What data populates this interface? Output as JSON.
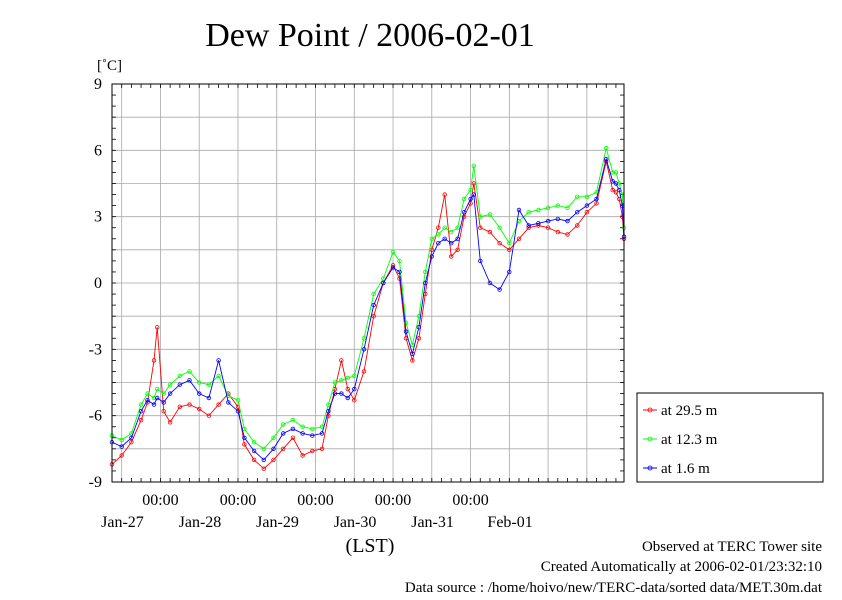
{
  "chart_data": {
    "type": "line",
    "title": "Dew Point / 2006-02-01",
    "ylabel": "[˚C]",
    "xlabel": "(LST)",
    "ylim": [
      -9,
      9
    ],
    "yticks": [
      9,
      6,
      3,
      0,
      -3,
      -6,
      -9
    ],
    "xlim": [
      "2006-01-26 09:00",
      "2006-02-01 23:30"
    ],
    "xticks_time": [
      {
        "x": "2006-01-27 00:00",
        "label": "00:00"
      },
      {
        "x": "2006-01-28 00:00",
        "label": "00:00"
      },
      {
        "x": "2006-01-29 00:00",
        "label": "00:00"
      },
      {
        "x": "2006-01-30 00:00",
        "label": "00:00"
      },
      {
        "x": "2006-01-31 00:00",
        "label": "00:00"
      }
    ],
    "xticks_date": [
      {
        "x": "2006-01-27 00:00",
        "label": "Jan-27"
      },
      {
        "x": "2006-01-28 00:00",
        "label": "Jan-28"
      },
      {
        "x": "2006-01-29 00:00",
        "label": "Jan-29"
      },
      {
        "x": "2006-01-30 00:00",
        "label": "Jan-30"
      },
      {
        "x": "2006-01-31 00:00",
        "label": "Jan-31"
      },
      {
        "x": "2006-02-01 00:00",
        "label": "Feb-01"
      }
    ],
    "grid": true,
    "legend_position": "right, outside plot",
    "series": [
      {
        "name": "at 29.5 m",
        "color": "#ff0000",
        "values": [
          [
            "2006-01-26 09:00",
            -8.2
          ],
          [
            "2006-01-26 12:00",
            -7.8
          ],
          [
            "2006-01-26 15:00",
            -7.2
          ],
          [
            "2006-01-26 18:00",
            -6.2
          ],
          [
            "2006-01-26 20:00",
            -5.4
          ],
          [
            "2006-01-26 22:00",
            -3.5
          ],
          [
            "2006-01-26 23:00",
            -2.0
          ],
          [
            "2006-01-27 01:00",
            -5.8
          ],
          [
            "2006-01-27 03:00",
            -6.3
          ],
          [
            "2006-01-27 06:00",
            -5.6
          ],
          [
            "2006-01-27 09:00",
            -5.5
          ],
          [
            "2006-01-27 12:00",
            -5.7
          ],
          [
            "2006-01-27 15:00",
            -6.0
          ],
          [
            "2006-01-27 18:00",
            -5.5
          ],
          [
            "2006-01-27 21:00",
            -5.0
          ],
          [
            "2006-01-28 00:00",
            -5.6
          ],
          [
            "2006-01-28 02:00",
            -7.3
          ],
          [
            "2006-01-28 05:00",
            -8.0
          ],
          [
            "2006-01-28 08:00",
            -8.4
          ],
          [
            "2006-01-28 11:00",
            -8.0
          ],
          [
            "2006-01-28 14:00",
            -7.5
          ],
          [
            "2006-01-28 17:00",
            -7.0
          ],
          [
            "2006-01-28 20:00",
            -7.8
          ],
          [
            "2006-01-28 23:00",
            -7.6
          ],
          [
            "2006-01-29 02:00",
            -7.5
          ],
          [
            "2006-01-29 04:00",
            -6.0
          ],
          [
            "2006-01-29 06:00",
            -4.8
          ],
          [
            "2006-01-29 08:00",
            -3.5
          ],
          [
            "2006-01-29 10:00",
            -4.8
          ],
          [
            "2006-01-29 12:00",
            -5.3
          ],
          [
            "2006-01-29 15:00",
            -4.0
          ],
          [
            "2006-01-29 18:00",
            -1.5
          ],
          [
            "2006-01-29 21:00",
            0.0
          ],
          [
            "2006-01-30 00:00",
            0.8
          ],
          [
            "2006-01-30 02:00",
            0.2
          ],
          [
            "2006-01-30 04:00",
            -2.5
          ],
          [
            "2006-01-30 06:00",
            -3.5
          ],
          [
            "2006-01-30 08:00",
            -2.5
          ],
          [
            "2006-01-30 10:00",
            -0.5
          ],
          [
            "2006-01-30 12:00",
            1.5
          ],
          [
            "2006-01-30 14:00",
            2.5
          ],
          [
            "2006-01-30 16:00",
            4.0
          ],
          [
            "2006-01-30 18:00",
            1.2
          ],
          [
            "2006-01-30 20:00",
            1.5
          ],
          [
            "2006-01-30 22:00",
            3.0
          ],
          [
            "2006-01-31 00:00",
            3.6
          ],
          [
            "2006-01-31 01:00",
            4.5
          ],
          [
            "2006-01-31 03:00",
            2.5
          ],
          [
            "2006-01-31 06:00",
            2.3
          ],
          [
            "2006-01-31 09:00",
            1.8
          ],
          [
            "2006-01-31 12:00",
            1.5
          ],
          [
            "2006-01-31 15:00",
            2.0
          ],
          [
            "2006-01-31 18:00",
            2.5
          ],
          [
            "2006-01-31 21:00",
            2.6
          ],
          [
            "2006-02-01 00:00",
            2.5
          ],
          [
            "2006-02-01 03:00",
            2.3
          ],
          [
            "2006-02-01 06:00",
            2.2
          ],
          [
            "2006-02-01 09:00",
            2.6
          ],
          [
            "2006-02-01 12:00",
            3.2
          ],
          [
            "2006-02-01 15:00",
            3.6
          ],
          [
            "2006-02-01 18:00",
            5.5
          ],
          [
            "2006-02-01 20:00",
            4.2
          ],
          [
            "2006-02-01 21:00",
            4.1
          ],
          [
            "2006-02-01 22:00",
            3.8
          ],
          [
            "2006-02-01 23:00",
            3.0
          ],
          [
            "2006-02-01 23:30",
            2.0
          ]
        ]
      },
      {
        "name": "at 12.3 m",
        "color": "#00ff00",
        "values": [
          [
            "2006-01-26 09:00",
            -6.9
          ],
          [
            "2006-01-26 12:00",
            -7.1
          ],
          [
            "2006-01-26 15:00",
            -6.8
          ],
          [
            "2006-01-26 18:00",
            -5.5
          ],
          [
            "2006-01-26 20:00",
            -5.0
          ],
          [
            "2006-01-26 22:00",
            -5.2
          ],
          [
            "2006-01-26 23:00",
            -4.8
          ],
          [
            "2006-01-27 01:00",
            -5.0
          ],
          [
            "2006-01-27 03:00",
            -4.6
          ],
          [
            "2006-01-27 06:00",
            -4.2
          ],
          [
            "2006-01-27 09:00",
            -4.0
          ],
          [
            "2006-01-27 12:00",
            -4.5
          ],
          [
            "2006-01-27 15:00",
            -4.6
          ],
          [
            "2006-01-27 18:00",
            -4.2
          ],
          [
            "2006-01-27 21:00",
            -5.1
          ],
          [
            "2006-01-28 00:00",
            -5.3
          ],
          [
            "2006-01-28 02:00",
            -6.6
          ],
          [
            "2006-01-28 05:00",
            -7.2
          ],
          [
            "2006-01-28 08:00",
            -7.5
          ],
          [
            "2006-01-28 11:00",
            -7.0
          ],
          [
            "2006-01-28 14:00",
            -6.4
          ],
          [
            "2006-01-28 17:00",
            -6.2
          ],
          [
            "2006-01-28 20:00",
            -6.5
          ],
          [
            "2006-01-28 23:00",
            -6.6
          ],
          [
            "2006-01-29 02:00",
            -6.5
          ],
          [
            "2006-01-29 04:00",
            -5.5
          ],
          [
            "2006-01-29 06:00",
            -4.5
          ],
          [
            "2006-01-29 08:00",
            -4.4
          ],
          [
            "2006-01-29 10:00",
            -4.3
          ],
          [
            "2006-01-29 12:00",
            -4.2
          ],
          [
            "2006-01-29 15:00",
            -2.5
          ],
          [
            "2006-01-29 18:00",
            -0.5
          ],
          [
            "2006-01-29 21:00",
            0.2
          ],
          [
            "2006-01-30 00:00",
            1.4
          ],
          [
            "2006-01-30 02:00",
            1.0
          ],
          [
            "2006-01-30 04:00",
            -1.8
          ],
          [
            "2006-01-30 06:00",
            -2.8
          ],
          [
            "2006-01-30 08:00",
            -1.5
          ],
          [
            "2006-01-30 10:00",
            0.5
          ],
          [
            "2006-01-30 12:00",
            2.0
          ],
          [
            "2006-01-30 14:00",
            2.2
          ],
          [
            "2006-01-30 16:00",
            2.5
          ],
          [
            "2006-01-30 18:00",
            2.3
          ],
          [
            "2006-01-30 20:00",
            2.5
          ],
          [
            "2006-01-30 22:00",
            3.8
          ],
          [
            "2006-01-31 00:00",
            4.2
          ],
          [
            "2006-01-31 01:00",
            5.3
          ],
          [
            "2006-01-31 03:00",
            3.0
          ],
          [
            "2006-01-31 06:00",
            3.1
          ],
          [
            "2006-01-31 09:00",
            2.5
          ],
          [
            "2006-01-31 12:00",
            1.8
          ],
          [
            "2006-01-31 15:00",
            2.8
          ],
          [
            "2006-01-31 18:00",
            3.2
          ],
          [
            "2006-01-31 21:00",
            3.3
          ],
          [
            "2006-02-01 00:00",
            3.4
          ],
          [
            "2006-02-01 03:00",
            3.5
          ],
          [
            "2006-02-01 06:00",
            3.4
          ],
          [
            "2006-02-01 09:00",
            3.9
          ],
          [
            "2006-02-01 12:00",
            3.9
          ],
          [
            "2006-02-01 15:00",
            4.1
          ],
          [
            "2006-02-01 18:00",
            6.1
          ],
          [
            "2006-02-01 20:00",
            5.0
          ],
          [
            "2006-02-01 21:00",
            5.0
          ],
          [
            "2006-02-01 22:00",
            4.5
          ],
          [
            "2006-02-01 23:00",
            4.0
          ],
          [
            "2006-02-01 23:30",
            2.5
          ]
        ]
      },
      {
        "name": "at 1.6 m",
        "color": "#0000ff",
        "values": [
          [
            "2006-01-26 09:00",
            -7.2
          ],
          [
            "2006-01-26 12:00",
            -7.4
          ],
          [
            "2006-01-26 15:00",
            -7.0
          ],
          [
            "2006-01-26 18:00",
            -5.8
          ],
          [
            "2006-01-26 20:00",
            -5.3
          ],
          [
            "2006-01-26 22:00",
            -5.5
          ],
          [
            "2006-01-26 23:00",
            -5.2
          ],
          [
            "2006-01-27 01:00",
            -5.4
          ],
          [
            "2006-01-27 03:00",
            -5.0
          ],
          [
            "2006-01-27 06:00",
            -4.6
          ],
          [
            "2006-01-27 09:00",
            -4.4
          ],
          [
            "2006-01-27 12:00",
            -5.0
          ],
          [
            "2006-01-27 15:00",
            -5.2
          ],
          [
            "2006-01-27 18:00",
            -3.5
          ],
          [
            "2006-01-27 21:00",
            -5.4
          ],
          [
            "2006-01-28 00:00",
            -5.8
          ],
          [
            "2006-01-28 02:00",
            -7.0
          ],
          [
            "2006-01-28 05:00",
            -7.6
          ],
          [
            "2006-01-28 08:00",
            -8.0
          ],
          [
            "2006-01-28 11:00",
            -7.5
          ],
          [
            "2006-01-28 14:00",
            -6.8
          ],
          [
            "2006-01-28 17:00",
            -6.6
          ],
          [
            "2006-01-28 20:00",
            -6.8
          ],
          [
            "2006-01-28 23:00",
            -6.9
          ],
          [
            "2006-01-29 02:00",
            -6.8
          ],
          [
            "2006-01-29 04:00",
            -5.8
          ],
          [
            "2006-01-29 06:00",
            -5.0
          ],
          [
            "2006-01-29 08:00",
            -5.0
          ],
          [
            "2006-01-29 10:00",
            -5.2
          ],
          [
            "2006-01-29 12:00",
            -4.8
          ],
          [
            "2006-01-29 15:00",
            -3.0
          ],
          [
            "2006-01-29 18:00",
            -1.0
          ],
          [
            "2006-01-29 21:00",
            0.0
          ],
          [
            "2006-01-30 00:00",
            0.7
          ],
          [
            "2006-01-30 02:00",
            0.5
          ],
          [
            "2006-01-30 04:00",
            -2.2
          ],
          [
            "2006-01-30 06:00",
            -3.2
          ],
          [
            "2006-01-30 08:00",
            -2.0
          ],
          [
            "2006-01-30 10:00",
            0.0
          ],
          [
            "2006-01-30 12:00",
            1.2
          ],
          [
            "2006-01-30 14:00",
            1.8
          ],
          [
            "2006-01-30 16:00",
            2.0
          ],
          [
            "2006-01-30 18:00",
            1.8
          ],
          [
            "2006-01-30 20:00",
            2.0
          ],
          [
            "2006-01-30 22:00",
            3.2
          ],
          [
            "2006-01-31 00:00",
            3.8
          ],
          [
            "2006-01-31 01:00",
            4.0
          ],
          [
            "2006-01-31 03:00",
            1.0
          ],
          [
            "2006-01-31 06:00",
            0.0
          ],
          [
            "2006-01-31 09:00",
            -0.3
          ],
          [
            "2006-01-31 12:00",
            0.5
          ],
          [
            "2006-01-31 15:00",
            3.3
          ],
          [
            "2006-01-31 18:00",
            2.6
          ],
          [
            "2006-01-31 21:00",
            2.7
          ],
          [
            "2006-02-01 00:00",
            2.8
          ],
          [
            "2006-02-01 03:00",
            2.9
          ],
          [
            "2006-02-01 06:00",
            2.8
          ],
          [
            "2006-02-01 09:00",
            3.2
          ],
          [
            "2006-02-01 12:00",
            3.5
          ],
          [
            "2006-02-01 15:00",
            3.8
          ],
          [
            "2006-02-01 18:00",
            5.6
          ],
          [
            "2006-02-01 20:00",
            4.6
          ],
          [
            "2006-02-01 21:00",
            4.5
          ],
          [
            "2006-02-01 22:00",
            4.2
          ],
          [
            "2006-02-01 23:00",
            3.5
          ],
          [
            "2006-02-01 23:30",
            2.1
          ]
        ]
      }
    ],
    "annotations": [
      "Observed at TERC Tower site",
      "Created Automatically at 2006-02-01/23:32:10",
      "Data source : /home/hoivo/new/TERC-data/sorted  data/MET.30m.dat"
    ]
  }
}
